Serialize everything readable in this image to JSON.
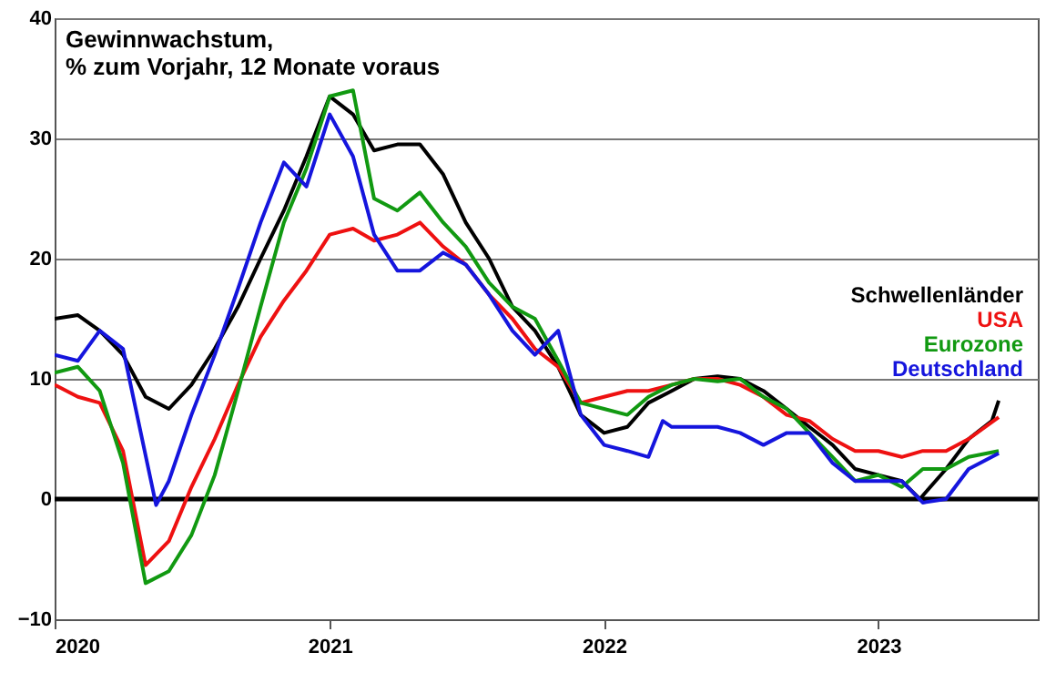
{
  "chart_data": {
    "type": "line",
    "title": "Gewinnwachstum,",
    "subtitle": "% zum Vorjahr, 12 Monate voraus",
    "xlim": [
      "2020-01-01",
      "2023-08-01"
    ],
    "xticks": [
      "2020",
      "2021",
      "2022",
      "2023"
    ],
    "ylim": [
      -10,
      40
    ],
    "yticks": [
      -10,
      0,
      10,
      20,
      30,
      40
    ],
    "grid": "y",
    "legend": "right",
    "ref_lines": [
      {
        "axis": "y",
        "value": 0,
        "color": "#000000"
      }
    ],
    "series": [
      {
        "name": "Schwellenländer",
        "color": "#000000",
        "x": [
          "2020-01",
          "2020-02",
          "2020-03",
          "2020-04",
          "2020-05",
          "2020-06",
          "2020-07",
          "2020-08",
          "2020-09",
          "2020-10",
          "2020-11",
          "2020-12",
          "2021-01",
          "2021-02",
          "2021-03",
          "2021-04",
          "2021-05",
          "2021-06",
          "2021-07",
          "2021-08",
          "2021-09",
          "2021-10",
          "2021-11",
          "2021-12",
          "2022-01",
          "2022-02",
          "2022-03",
          "2022-04",
          "2022-05",
          "2022-06",
          "2022-07",
          "2022-08",
          "2022-09",
          "2022-10",
          "2022-11",
          "2022-12",
          "2023-01",
          "2023-02",
          "2023-02-25",
          "2023-04",
          "2023-05",
          "2023-06",
          "2023-06-10"
        ],
        "values": [
          15,
          15.3,
          14,
          12,
          8.5,
          7.5,
          9.5,
          12.5,
          16,
          20,
          24,
          28.5,
          33.5,
          32,
          29,
          29.5,
          29.5,
          27,
          23,
          20,
          16,
          14,
          11,
          7,
          5.5,
          6,
          8,
          9,
          10,
          10.2,
          10,
          9,
          7.5,
          6,
          4.5,
          2.5,
          2,
          1.5,
          0,
          2.5,
          5,
          6.5,
          8.2
        ]
      },
      {
        "name": "USA",
        "color": "#ee1111",
        "x": [
          "2020-01",
          "2020-02",
          "2020-03",
          "2020-04",
          "2020-05",
          "2020-06",
          "2020-07",
          "2020-08",
          "2020-09",
          "2020-10",
          "2020-11",
          "2020-12",
          "2021-01",
          "2021-02",
          "2021-03",
          "2021-04",
          "2021-05",
          "2021-06",
          "2021-07",
          "2021-08",
          "2021-09",
          "2021-10",
          "2021-11",
          "2021-12",
          "2022-01",
          "2022-02",
          "2022-03",
          "2022-04",
          "2022-05",
          "2022-06",
          "2022-07",
          "2022-08",
          "2022-09",
          "2022-10",
          "2022-11",
          "2022-12",
          "2023-01",
          "2023-02",
          "2023-03",
          "2023-04",
          "2023-05",
          "2023-06-10"
        ],
        "values": [
          9.5,
          8.5,
          8,
          4,
          -5.5,
          -3.5,
          1,
          5,
          9.5,
          13.5,
          16.5,
          19,
          22,
          22.5,
          21.5,
          22,
          23,
          21,
          19.5,
          17,
          15,
          12.5,
          11,
          8,
          8.5,
          9,
          9,
          9.5,
          10,
          10,
          9.5,
          8.5,
          7,
          6.5,
          5,
          4,
          4,
          3.5,
          4,
          4,
          5,
          6.8
        ]
      },
      {
        "name": "Eurozone",
        "color": "#119911",
        "x": [
          "2020-01",
          "2020-02",
          "2020-03",
          "2020-04",
          "2020-05",
          "2020-06",
          "2020-07",
          "2020-08",
          "2020-09",
          "2020-10",
          "2020-11",
          "2020-12",
          "2021-01",
          "2021-02",
          "2021-03",
          "2021-04",
          "2021-05",
          "2021-06",
          "2021-07",
          "2021-08",
          "2021-09",
          "2021-10",
          "2021-11",
          "2021-12",
          "2022-01",
          "2022-02",
          "2022-03",
          "2022-04",
          "2022-05",
          "2022-06",
          "2022-07",
          "2022-08",
          "2022-09",
          "2022-10",
          "2022-11",
          "2022-12",
          "2023-01",
          "2023-02",
          "2023-03",
          "2023-04",
          "2023-05",
          "2023-06-10"
        ],
        "values": [
          10.5,
          11,
          9,
          3,
          -7,
          -6,
          -3,
          2,
          9,
          16,
          23,
          27.5,
          33.5,
          34,
          25,
          24,
          25.5,
          23,
          21,
          18,
          16,
          15,
          11.5,
          8,
          7.5,
          7,
          8.5,
          9.5,
          10,
          9.8,
          10,
          8.5,
          7.5,
          5.5,
          3.5,
          1.5,
          2,
          1,
          2.5,
          2.5,
          3.5,
          4
        ]
      },
      {
        "name": "Deutschland",
        "color": "#1515dd",
        "x": [
          "2020-01",
          "2020-02",
          "2020-03",
          "2020-04",
          "2020-05-15",
          "2020-06",
          "2020-07",
          "2020-08",
          "2020-09",
          "2020-10",
          "2020-11",
          "2020-12",
          "2021-01",
          "2021-02",
          "2021-03",
          "2021-04",
          "2021-05",
          "2021-06",
          "2021-07",
          "2021-08",
          "2021-09",
          "2021-10",
          "2021-11",
          "2021-12",
          "2022-01",
          "2022-02",
          "2022-03",
          "2022-03-20",
          "2022-04",
          "2022-05",
          "2022-06",
          "2022-07",
          "2022-08",
          "2022-09",
          "2022-10",
          "2022-11",
          "2022-12",
          "2023-01",
          "2023-02",
          "2023-03",
          "2023-04",
          "2023-05",
          "2023-06-10"
        ],
        "values": [
          12,
          11.5,
          14,
          12.5,
          -0.5,
          1.5,
          7,
          12,
          17.5,
          23,
          28,
          26,
          32,
          28.5,
          22,
          19,
          19,
          20.5,
          19.5,
          17,
          14,
          12,
          14,
          7,
          4.5,
          4,
          3.5,
          6.5,
          6,
          6,
          6,
          5.5,
          4.5,
          5.5,
          5.5,
          3,
          1.5,
          1.5,
          1.5,
          -0.3,
          0,
          2.5,
          3.8
        ]
      }
    ]
  }
}
